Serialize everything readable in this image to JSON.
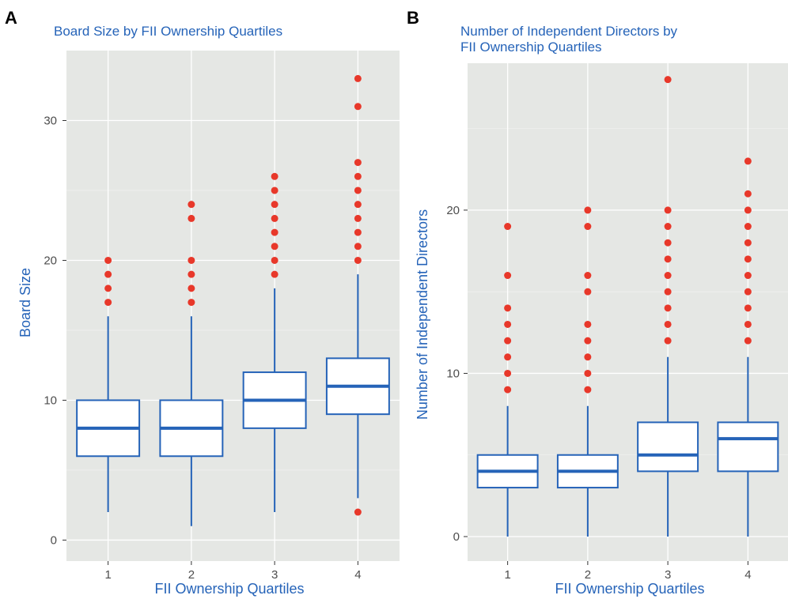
{
  "colors": {
    "panel_bg": "#e5e7e4",
    "grid_major": "#ffffff",
    "box_stroke": "#2563b8",
    "outlier": "#e8382a",
    "title": "#2563b8",
    "tick_text": "#4d4d4d"
  },
  "chart_data": [
    {
      "type": "box",
      "panel_label": "A",
      "title": "Board Size by FII Ownership Quartiles",
      "xlabel": "FII Ownership Quartiles",
      "ylabel": "Board Size",
      "ylim": [
        -1.5,
        35
      ],
      "y_ticks": [
        0,
        10,
        20,
        30
      ],
      "categories": [
        "1",
        "2",
        "3",
        "4"
      ],
      "boxes": [
        {
          "category": "1",
          "whisker_low": 2,
          "q1": 6,
          "median": 8,
          "q3": 10,
          "whisker_high": 16,
          "outliers": [
            17,
            18,
            19,
            20
          ]
        },
        {
          "category": "2",
          "whisker_low": 1,
          "q1": 6,
          "median": 8,
          "q3": 10,
          "whisker_high": 16,
          "outliers": [
            17,
            18,
            19,
            20,
            23,
            24
          ]
        },
        {
          "category": "3",
          "whisker_low": 2,
          "q1": 8,
          "median": 10,
          "q3": 12,
          "whisker_high": 18,
          "outliers": [
            19,
            20,
            21,
            22,
            23,
            24,
            25,
            26
          ]
        },
        {
          "category": "4",
          "whisker_low": 3,
          "q1": 9,
          "median": 11,
          "q3": 13,
          "whisker_high": 19,
          "outliers": [
            2,
            20,
            21,
            22,
            23,
            24,
            25,
            26,
            27,
            31,
            33
          ]
        }
      ],
      "grid": true
    },
    {
      "type": "box",
      "panel_label": "B",
      "title": "Number of Independent Directors by\n FII Ownership Quartiles",
      "xlabel": "FII Ownership Quartiles",
      "ylabel": "Number of Independent Directors",
      "ylim": [
        -1.5,
        29
      ],
      "y_ticks": [
        0,
        10,
        20
      ],
      "categories": [
        "1",
        "2",
        "3",
        "4"
      ],
      "boxes": [
        {
          "category": "1",
          "whisker_low": 0,
          "q1": 3,
          "median": 4,
          "q3": 5,
          "whisker_high": 8,
          "outliers": [
            9,
            10,
            11,
            12,
            13,
            14,
            16,
            19
          ]
        },
        {
          "category": "2",
          "whisker_low": 0,
          "q1": 3,
          "median": 4,
          "q3": 5,
          "whisker_high": 8,
          "outliers": [
            9,
            10,
            11,
            12,
            13,
            15,
            16,
            19,
            20
          ]
        },
        {
          "category": "3",
          "whisker_low": 0,
          "q1": 4,
          "median": 5,
          "q3": 7,
          "whisker_high": 11,
          "outliers": [
            12,
            13,
            14,
            15,
            16,
            17,
            18,
            19,
            20,
            28
          ]
        },
        {
          "category": "4",
          "whisker_low": 0,
          "q1": 4,
          "median": 6,
          "q3": 7,
          "whisker_high": 11,
          "outliers": [
            12,
            13,
            14,
            15,
            16,
            17,
            18,
            19,
            20,
            21,
            23
          ]
        }
      ],
      "grid": true
    }
  ]
}
